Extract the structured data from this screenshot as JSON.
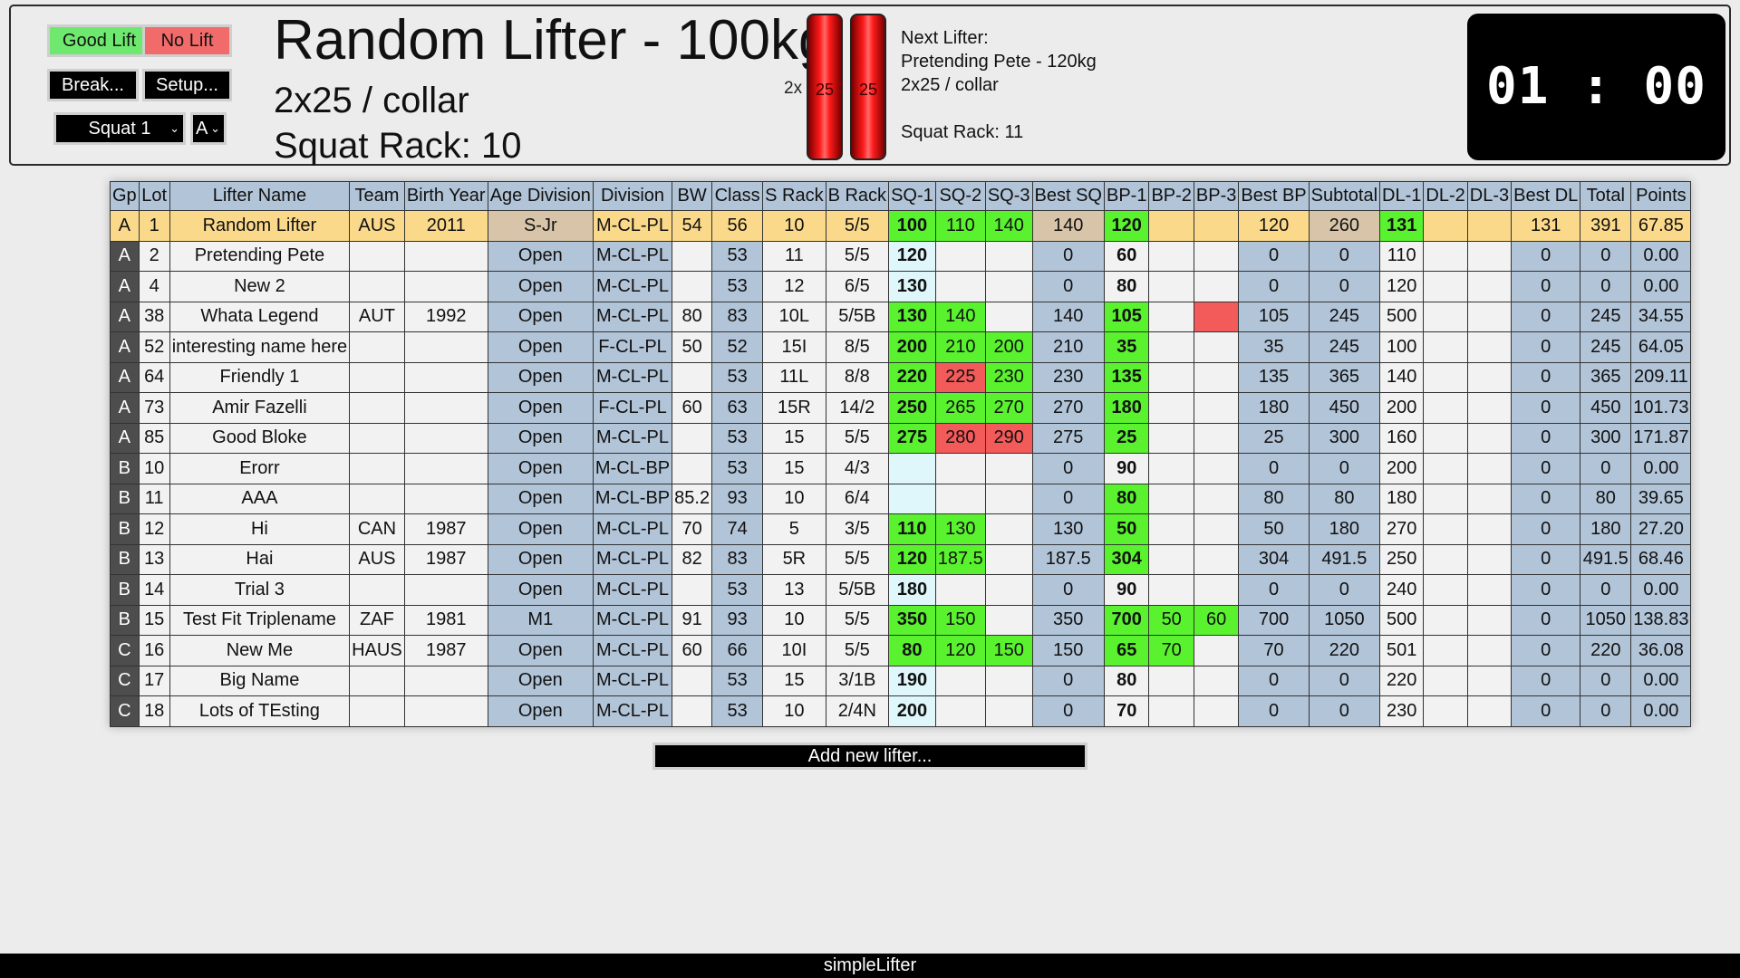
{
  "controls": {
    "good_lift": "Good Lift",
    "no_lift": "No Lift",
    "break": "Break...",
    "setup": "Setup...",
    "lift_select": "Squat 1",
    "flight_select": "A",
    "colors": {
      "good": "#6ee86e",
      "no": "#f26b6b"
    }
  },
  "current": {
    "name": "Random Lifter - 100kg",
    "plates": "2x25 / collar",
    "rack": "Squat Rack: 10",
    "plate_multiplier": "2x",
    "plate_values": [
      "25",
      "25"
    ],
    "plate_color": "#ff1a1a"
  },
  "next_lifter": {
    "label": "Next Lifter:",
    "name": "Pretending Pete - 120kg",
    "plates": "2x25 / collar",
    "rack": "Squat Rack: 11"
  },
  "timer": "01 : 00",
  "table": {
    "headers": [
      "Gp",
      "Lot",
      "Lifter Name",
      "Team",
      "Birth Year",
      "Age Division",
      "Division",
      "BW",
      "Class",
      "S Rack",
      "B Rack",
      "SQ-1",
      "SQ-2",
      "SQ-3",
      "Best SQ",
      "BP-1",
      "BP-2",
      "BP-3",
      "Best BP",
      "Subtotal",
      "DL-1",
      "DL-2",
      "DL-3",
      "Best DL",
      "Total",
      "Points"
    ],
    "rows": [
      {
        "gp": "A",
        "lot": "1",
        "name": "Random Lifter",
        "team": "AUS",
        "birth": "2011",
        "age": "S-Jr",
        "div": "M-CL-PL",
        "bw": "54",
        "cls": "56",
        "srack": "10",
        "brack": "5/5",
        "sq1": "100",
        "sq2": "110",
        "sq3": "140",
        "bsq": "140",
        "bp1": "120",
        "bp2": "",
        "bp3": "",
        "bbp": "120",
        "sub": "260",
        "dl1": "131",
        "dl2": "",
        "dl3": "",
        "bdl": "131",
        "tot": "391",
        "pts": "67.85"
      },
      {
        "gp": "A",
        "lot": "2",
        "name": "Pretending Pete",
        "team": "",
        "birth": "",
        "age": "Open",
        "div": "M-CL-PL",
        "bw": "",
        "cls": "53",
        "srack": "11",
        "brack": "5/5",
        "sq1": "120",
        "sq2": "",
        "sq3": "",
        "bsq": "0",
        "bp1": "60",
        "bp2": "",
        "bp3": "",
        "bbp": "0",
        "sub": "0",
        "dl1": "110",
        "dl2": "",
        "dl3": "",
        "bdl": "0",
        "tot": "0",
        "pts": "0.00"
      },
      {
        "gp": "A",
        "lot": "4",
        "name": "New 2",
        "team": "",
        "birth": "",
        "age": "Open",
        "div": "M-CL-PL",
        "bw": "",
        "cls": "53",
        "srack": "12",
        "brack": "6/5",
        "sq1": "130",
        "sq2": "",
        "sq3": "",
        "bsq": "0",
        "bp1": "80",
        "bp2": "",
        "bp3": "",
        "bbp": "0",
        "sub": "0",
        "dl1": "120",
        "dl2": "",
        "dl3": "",
        "bdl": "0",
        "tot": "0",
        "pts": "0.00"
      },
      {
        "gp": "A",
        "lot": "38",
        "name": "Whata Legend",
        "team": "AUT",
        "birth": "1992",
        "age": "Open",
        "div": "M-CL-PL",
        "bw": "80",
        "cls": "83",
        "srack": "10L",
        "brack": "5/5B",
        "sq1": "130",
        "sq2": "140",
        "sq3": "",
        "bsq": "140",
        "bp1": "105",
        "bp2": "",
        "bp3": "",
        "bbp": "105",
        "sub": "245",
        "dl1": "500",
        "dl2": "",
        "dl3": "",
        "bdl": "0",
        "tot": "245",
        "pts": "34.55"
      },
      {
        "gp": "A",
        "lot": "52",
        "name": "interesting name here",
        "team": "",
        "birth": "",
        "age": "Open",
        "div": "F-CL-PL",
        "bw": "50",
        "cls": "52",
        "srack": "15I",
        "brack": "8/5",
        "sq1": "200",
        "sq2": "210",
        "sq3": "200",
        "bsq": "210",
        "bp1": "35",
        "bp2": "",
        "bp3": "",
        "bbp": "35",
        "sub": "245",
        "dl1": "100",
        "dl2": "",
        "dl3": "",
        "bdl": "0",
        "tot": "245",
        "pts": "64.05"
      },
      {
        "gp": "A",
        "lot": "64",
        "name": "Friendly 1",
        "team": "",
        "birth": "",
        "age": "Open",
        "div": "M-CL-PL",
        "bw": "",
        "cls": "53",
        "srack": "11L",
        "brack": "8/8",
        "sq1": "220",
        "sq2": "225",
        "sq3": "230",
        "bsq": "230",
        "bp1": "135",
        "bp2": "",
        "bp3": "",
        "bbp": "135",
        "sub": "365",
        "dl1": "140",
        "dl2": "",
        "dl3": "",
        "bdl": "0",
        "tot": "365",
        "pts": "209.11"
      },
      {
        "gp": "A",
        "lot": "73",
        "name": "Amir Fazelli",
        "team": "",
        "birth": "",
        "age": "Open",
        "div": "F-CL-PL",
        "bw": "60",
        "cls": "63",
        "srack": "15R",
        "brack": "14/2",
        "sq1": "250",
        "sq2": "265",
        "sq3": "270",
        "bsq": "270",
        "bp1": "180",
        "bp2": "",
        "bp3": "",
        "bbp": "180",
        "sub": "450",
        "dl1": "200",
        "dl2": "",
        "dl3": "",
        "bdl": "0",
        "tot": "450",
        "pts": "101.73"
      },
      {
        "gp": "A",
        "lot": "85",
        "name": "Good Bloke",
        "team": "",
        "birth": "",
        "age": "Open",
        "div": "M-CL-PL",
        "bw": "",
        "cls": "53",
        "srack": "15",
        "brack": "5/5",
        "sq1": "275",
        "sq2": "280",
        "sq3": "290",
        "bsq": "275",
        "bp1": "25",
        "bp2": "",
        "bp3": "",
        "bbp": "25",
        "sub": "300",
        "dl1": "160",
        "dl2": "",
        "dl3": "",
        "bdl": "0",
        "tot": "300",
        "pts": "171.87"
      },
      {
        "gp": "B",
        "lot": "10",
        "name": "Erorr",
        "team": "",
        "birth": "",
        "age": "Open",
        "div": "M-CL-BP",
        "bw": "",
        "cls": "53",
        "srack": "15",
        "brack": "4/3",
        "sq1": "",
        "sq2": "",
        "sq3": "",
        "bsq": "0",
        "bp1": "90",
        "bp2": "",
        "bp3": "",
        "bbp": "0",
        "sub": "0",
        "dl1": "200",
        "dl2": "",
        "dl3": "",
        "bdl": "0",
        "tot": "0",
        "pts": "0.00"
      },
      {
        "gp": "B",
        "lot": "11",
        "name": "AAA",
        "team": "",
        "birth": "",
        "age": "Open",
        "div": "M-CL-BP",
        "bw": "85.2",
        "cls": "93",
        "srack": "10",
        "brack": "6/4",
        "sq1": "",
        "sq2": "",
        "sq3": "",
        "bsq": "0",
        "bp1": "80",
        "bp2": "",
        "bp3": "",
        "bbp": "80",
        "sub": "80",
        "dl1": "180",
        "dl2": "",
        "dl3": "",
        "bdl": "0",
        "tot": "80",
        "pts": "39.65"
      },
      {
        "gp": "B",
        "lot": "12",
        "name": "Hi",
        "team": "CAN",
        "birth": "1987",
        "age": "Open",
        "div": "M-CL-PL",
        "bw": "70",
        "cls": "74",
        "srack": "5",
        "brack": "3/5",
        "sq1": "110",
        "sq2": "130",
        "sq3": "",
        "bsq": "130",
        "bp1": "50",
        "bp2": "",
        "bp3": "",
        "bbp": "50",
        "sub": "180",
        "dl1": "270",
        "dl2": "",
        "dl3": "",
        "bdl": "0",
        "tot": "180",
        "pts": "27.20"
      },
      {
        "gp": "B",
        "lot": "13",
        "name": "Hai",
        "team": "AUS",
        "birth": "1987",
        "age": "Open",
        "div": "M-CL-PL",
        "bw": "82",
        "cls": "83",
        "srack": "5R",
        "brack": "5/5",
        "sq1": "120",
        "sq2": "187.5",
        "sq3": "",
        "bsq": "187.5",
        "bp1": "304",
        "bp2": "",
        "bp3": "",
        "bbp": "304",
        "sub": "491.5",
        "dl1": "250",
        "dl2": "",
        "dl3": "",
        "bdl": "0",
        "tot": "491.5",
        "pts": "68.46"
      },
      {
        "gp": "B",
        "lot": "14",
        "name": "Trial 3",
        "team": "",
        "birth": "",
        "age": "Open",
        "div": "M-CL-PL",
        "bw": "",
        "cls": "53",
        "srack": "13",
        "brack": "5/5B",
        "sq1": "180",
        "sq2": "",
        "sq3": "",
        "bsq": "0",
        "bp1": "90",
        "bp2": "",
        "bp3": "",
        "bbp": "0",
        "sub": "0",
        "dl1": "240",
        "dl2": "",
        "dl3": "",
        "bdl": "0",
        "tot": "0",
        "pts": "0.00"
      },
      {
        "gp": "B",
        "lot": "15",
        "name": "Test Fit Triplename",
        "team": "ZAF",
        "birth": "1981",
        "age": "M1",
        "div": "M-CL-PL",
        "bw": "91",
        "cls": "93",
        "srack": "10",
        "brack": "5/5",
        "sq1": "350",
        "sq2": "150",
        "sq3": "",
        "bsq": "350",
        "bp1": "700",
        "bp2": "50",
        "bp3": "60",
        "bbp": "700",
        "sub": "1050",
        "dl1": "500",
        "dl2": "",
        "dl3": "",
        "bdl": "0",
        "tot": "1050",
        "pts": "138.83"
      },
      {
        "gp": "C",
        "lot": "16",
        "name": "New Me",
        "team": "HAUS",
        "birth": "1987",
        "age": "Open",
        "div": "M-CL-PL",
        "bw": "60",
        "cls": "66",
        "srack": "10I",
        "brack": "5/5",
        "sq1": "80",
        "sq2": "120",
        "sq3": "150",
        "bsq": "150",
        "bp1": "65",
        "bp2": "70",
        "bp3": "",
        "bbp": "70",
        "sub": "220",
        "dl1": "501",
        "dl2": "",
        "dl3": "",
        "bdl": "0",
        "tot": "220",
        "pts": "36.08"
      },
      {
        "gp": "C",
        "lot": "17",
        "name": "Big Name",
        "team": "",
        "birth": "",
        "age": "Open",
        "div": "M-CL-PL",
        "bw": "",
        "cls": "53",
        "srack": "15",
        "brack": "3/1B",
        "sq1": "190",
        "sq2": "",
        "sq3": "",
        "bsq": "0",
        "bp1": "80",
        "bp2": "",
        "bp3": "",
        "bbp": "0",
        "sub": "0",
        "dl1": "220",
        "dl2": "",
        "dl3": "",
        "bdl": "0",
        "tot": "0",
        "pts": "0.00"
      },
      {
        "gp": "C",
        "lot": "18",
        "name": "Lots of TEsting",
        "team": "",
        "birth": "",
        "age": "Open",
        "div": "M-CL-PL",
        "bw": "",
        "cls": "53",
        "srack": "10",
        "brack": "2/4N",
        "sq1": "200",
        "sq2": "",
        "sq3": "",
        "bsq": "0",
        "bp1": "70",
        "bp2": "",
        "bp3": "",
        "bbp": "0",
        "sub": "0",
        "dl1": "230",
        "dl2": "",
        "dl3": "",
        "bdl": "0",
        "tot": "0",
        "pts": "0.00"
      }
    ],
    "attempt_status": [
      {
        "sq1": "good",
        "sq2": "good",
        "sq3": "good",
        "bp1": "good"
      },
      {
        "sq1": "pending"
      },
      {
        "sq1": "pending"
      },
      {
        "sq1": "good",
        "sq2": "good",
        "bp1": "good",
        "bp3": "bad"
      },
      {
        "sq1": "good",
        "sq2": "good",
        "sq3": "good",
        "bp1": "good"
      },
      {
        "sq1": "good",
        "sq2": "bad",
        "sq3": "good",
        "bp1": "good"
      },
      {
        "sq1": "good",
        "sq2": "good",
        "sq3": "good",
        "bp1": "good"
      },
      {
        "sq1": "good",
        "sq2": "bad",
        "sq3": "bad",
        "bp1": "good"
      },
      {
        "sq1": "pending"
      },
      {
        "sq1": "pending",
        "bp1": "good"
      },
      {
        "sq1": "good",
        "sq2": "good",
        "bp1": "good"
      },
      {
        "sq1": "good",
        "sq2": "good",
        "bp1": "good"
      },
      {
        "sq1": "pending"
      },
      {
        "sq1": "good",
        "sq2": "good",
        "bp1": "good",
        "bp2": "good",
        "bp3": "good"
      },
      {
        "sq1": "good",
        "sq2": "good",
        "sq3": "good",
        "bp1": "good",
        "bp2": "good"
      },
      {
        "sq1": "pending"
      },
      {
        "sq1": "pending"
      }
    ],
    "current_row": 0,
    "colors": {
      "good": "#5af22f",
      "bad": "#f35a5a",
      "pending": "#dff7fb",
      "current": "#fbd98a"
    }
  },
  "add_lifter": "Add new lifter...",
  "footer": "simpleLifter"
}
